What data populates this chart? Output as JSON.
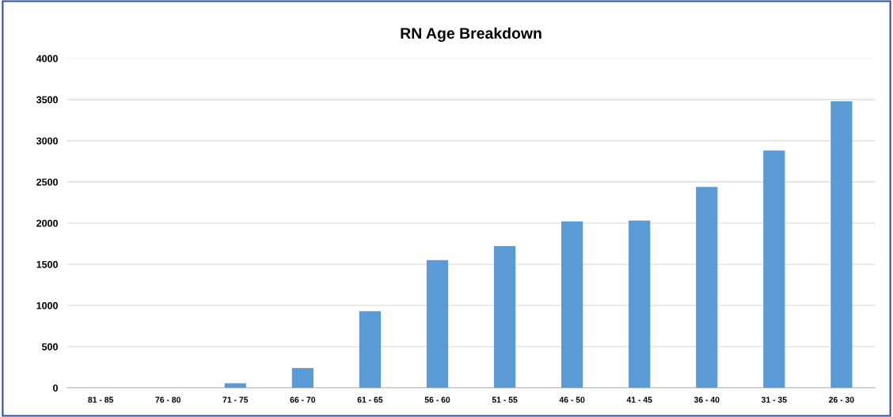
{
  "chart_data": {
    "type": "bar",
    "title": "RN Age Breakdown",
    "categories": [
      "81 - 85",
      "76 - 80",
      "71 - 75",
      "66 - 70",
      "61 - 65",
      "56 - 60",
      "51 - 55",
      "46 - 50",
      "41 - 45",
      "36 - 40",
      "31 - 35",
      "26 - 30"
    ],
    "values": [
      0,
      0,
      55,
      240,
      930,
      1550,
      1720,
      2020,
      2030,
      2440,
      2880,
      3480
    ],
    "color": "#5b9bd5",
    "ylim": [
      0,
      4000
    ],
    "yticks": [
      0,
      500,
      1000,
      1500,
      2000,
      2500,
      3000,
      3500,
      4000
    ],
    "grid": "y",
    "legend": false
  }
}
